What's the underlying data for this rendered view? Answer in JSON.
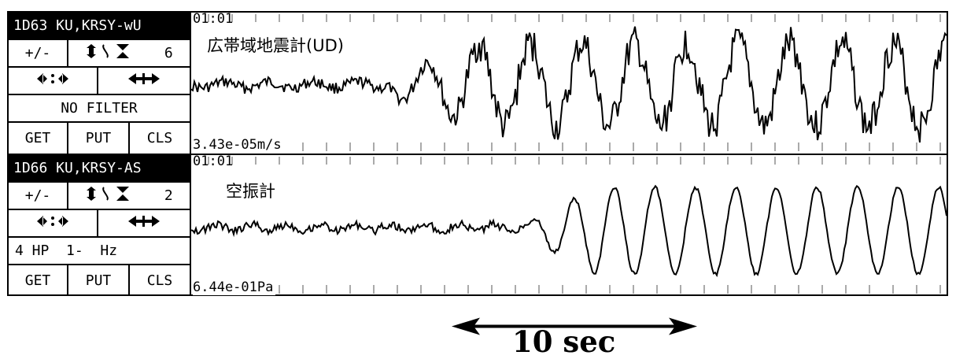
{
  "channels": [
    {
      "station": "1D63 KU,KRSY-wU",
      "plusminus": "+/-",
      "gain_icon": "vertical-gain-arrows-icon",
      "gain_value": "6",
      "hcompress_icon": "horizontal-compress-icon",
      "hexpand_icon": "horizontal-expand-icon",
      "filter": "NO FILTER",
      "get": "GET",
      "put": "PUT",
      "cls": "CLS",
      "time": "01:01",
      "label": "広帯域地震計(UD)",
      "scale": "3.43e-05m/s"
    },
    {
      "station": "1D66 KU,KRSY-AS",
      "plusminus": "+/-",
      "gain_icon": "vertical-gain-arrows-icon",
      "gain_value": "2",
      "hcompress_icon": "horizontal-compress-icon",
      "hexpand_icon": "horizontal-expand-icon",
      "filter": "4 HP  1-  Hz",
      "get": "GET",
      "put": "PUT",
      "cls": "CLS",
      "time": "01:01",
      "label": "空振計",
      "scale": "6.44e-01Pa"
    }
  ],
  "scale_bar": {
    "label": "10 sec",
    "icon": "double-headed-arrow-icon"
  }
}
